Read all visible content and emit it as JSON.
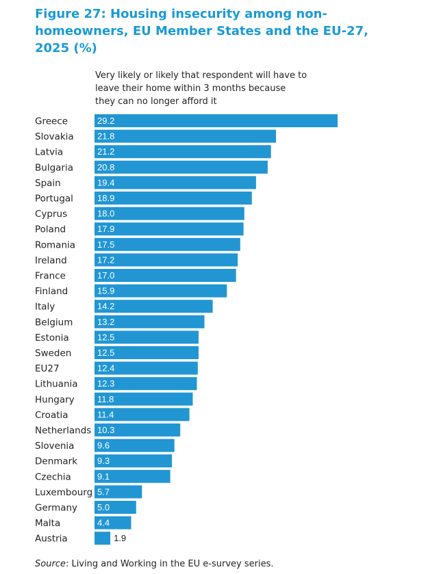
{
  "title": "Figure 27: Housing insecurity among non-homeowners, EU Member States and the EU-27, 2025 (%)",
  "chart_data": {
    "type": "bar",
    "orientation": "horizontal",
    "subtitle": "Very likely or likely that respondent will have to\nleave their home within 3 months because\n they can no longer afford it",
    "categories": [
      "Greece",
      "Slovakia",
      "Latvia",
      "Bulgaria",
      "Spain",
      "Portugal",
      "Cyprus",
      "Poland",
      "Romania",
      "Ireland",
      "France",
      "Finland",
      "Italy",
      "Belgium",
      "Estonia",
      "Sweden",
      "EU27",
      "Lithuania",
      "Hungary",
      "Croatia",
      "Netherlands",
      "Slovenia",
      "Denmark",
      "Czechia",
      "Luxembourg",
      "Germany",
      "Malta",
      "Austria"
    ],
    "values": [
      29.2,
      21.8,
      21.2,
      20.8,
      19.4,
      18.9,
      18.0,
      17.9,
      17.5,
      17.2,
      17.0,
      15.9,
      14.2,
      13.2,
      12.5,
      12.5,
      12.4,
      12.3,
      11.8,
      11.4,
      10.3,
      9.6,
      9.3,
      9.1,
      5.7,
      5.0,
      4.4,
      1.9
    ],
    "value_labels": [
      "29.2",
      "21.8",
      "21.2",
      "20.8",
      "19.4",
      "18.9",
      "18.0",
      "17.9",
      "17.5",
      "17.2",
      "17.0",
      "15.9",
      "14.2",
      "13.2",
      "12.5",
      "12.5",
      "12.4",
      "12.3",
      "11.8",
      "11.4",
      "10.3",
      "9.6",
      "9.3",
      "9.1",
      "5.7",
      "5.0",
      "4.4",
      "1.9"
    ],
    "xlim": [
      0,
      30
    ],
    "grid": false,
    "legend": "none",
    "bar_color": "#2196d3",
    "label_color_inside": "#ffffff",
    "label_color_outside": "#222222"
  },
  "source": {
    "label": "Source",
    "text": ": Living and Working in the EU e-survey series."
  }
}
